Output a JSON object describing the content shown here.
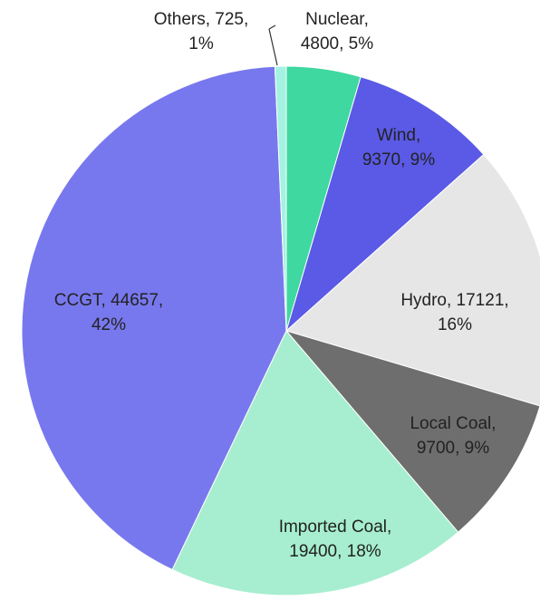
{
  "chart_data": {
    "type": "pie",
    "categories": [
      "Nuclear",
      "Wind",
      "Hydro",
      "Local Coal",
      "Imported Coal",
      "CCGT",
      "Others"
    ],
    "values": [
      4800,
      9370,
      17121,
      9700,
      19400,
      44657,
      725
    ],
    "value_labels": [
      [
        "Nuclear,",
        "4800, 5%"
      ],
      [
        "Wind,",
        "9370, 9%"
      ],
      [
        "Hydro, 17121,",
        "16%"
      ],
      [
        "Local Coal,",
        "9700, 9%"
      ],
      [
        "Imported Coal,",
        "19400, 18%"
      ],
      [
        "CCGT, 44657,",
        "42%"
      ],
      [
        "Others, 725,",
        "1%"
      ]
    ],
    "colors": [
      "#3fd8a0",
      "#5a5ae6",
      "#e6e6e6",
      "#6e6e6e",
      "#a6eecf",
      "#7878ee",
      "#a4f2e2"
    ]
  }
}
